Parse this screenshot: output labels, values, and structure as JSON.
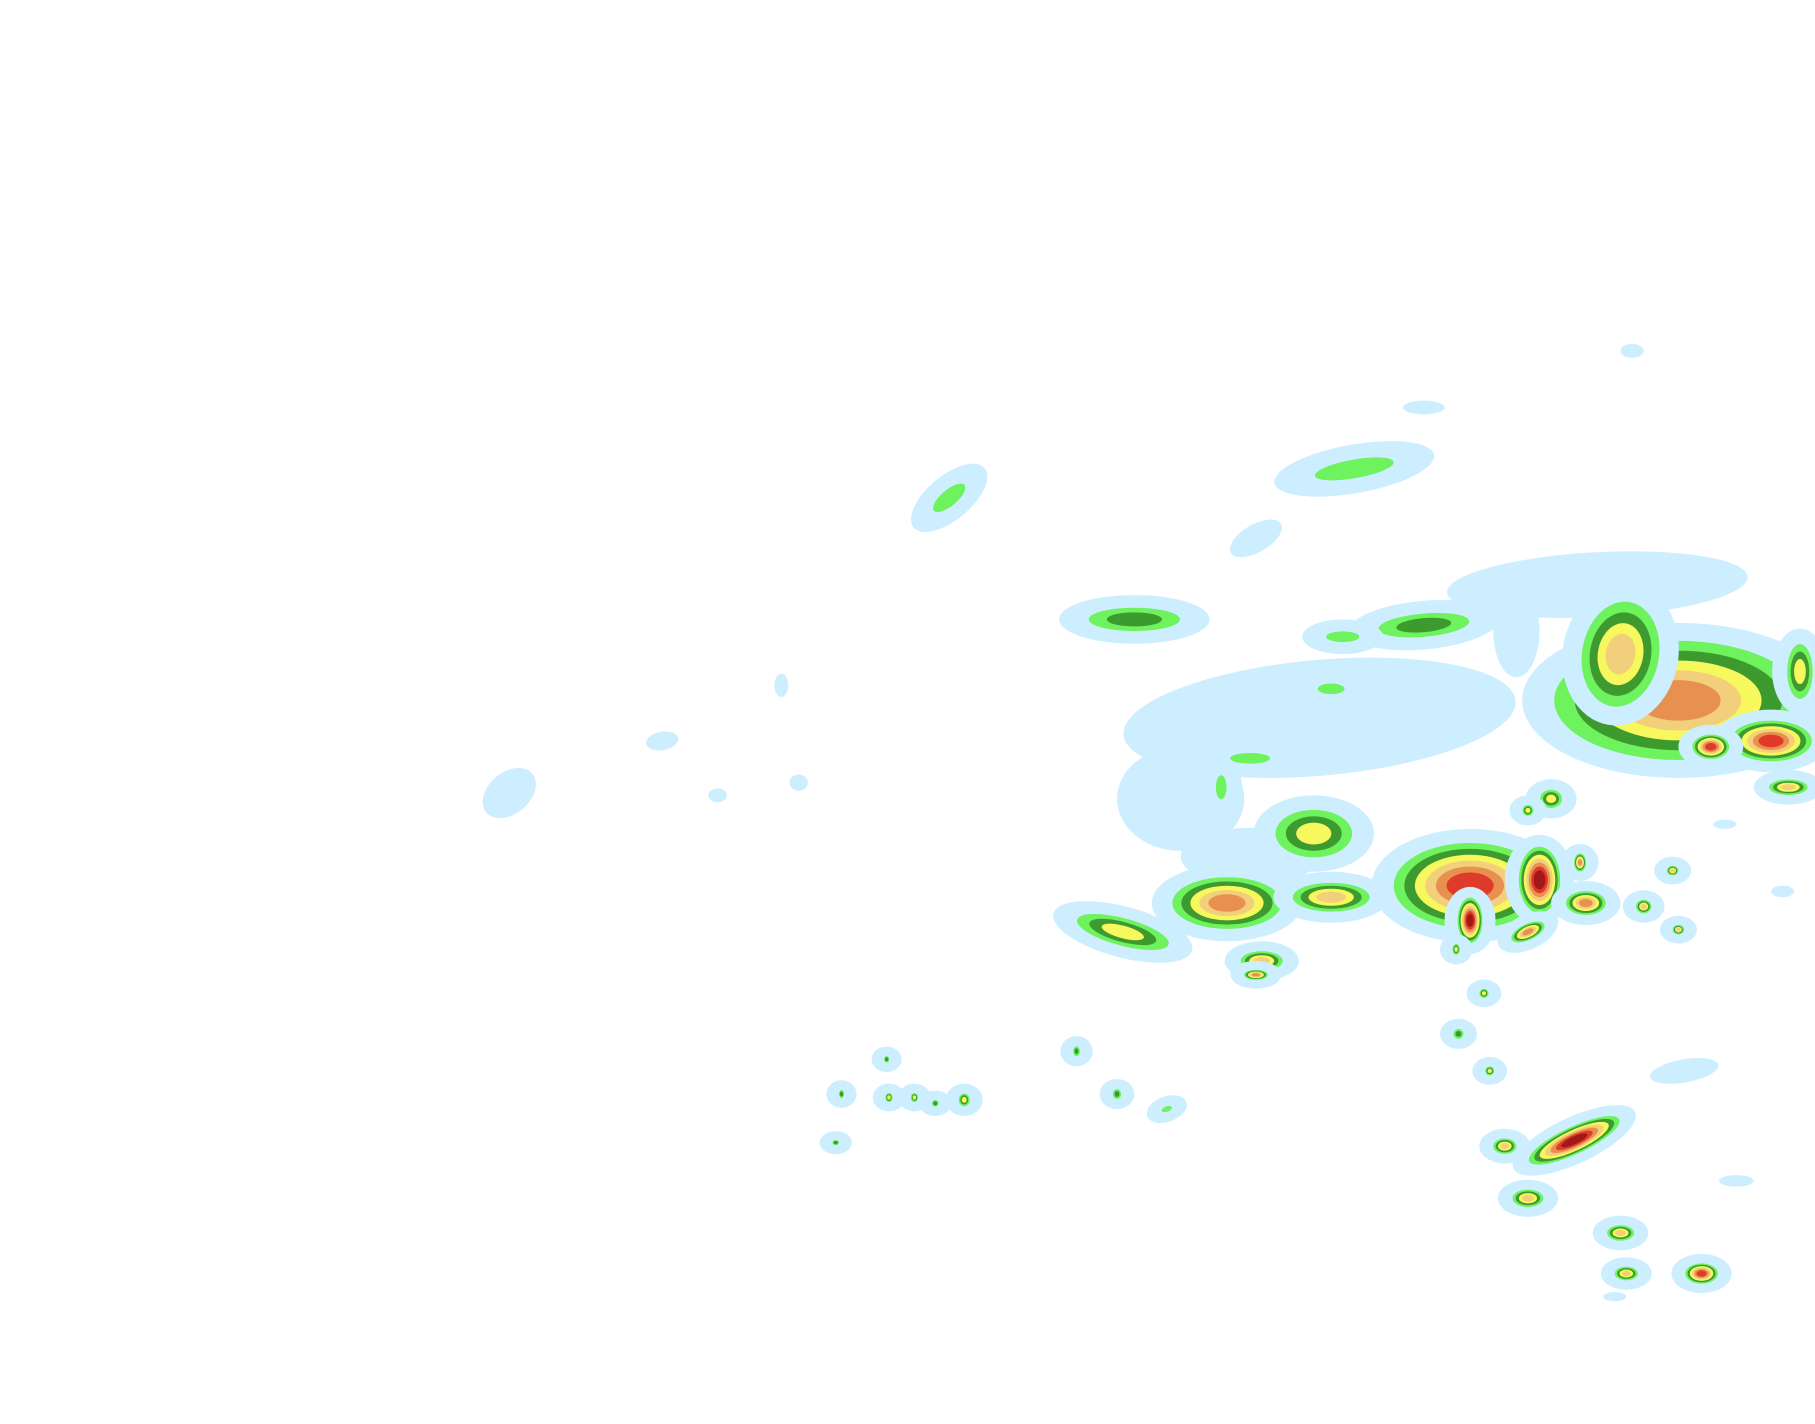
{
  "map": {
    "layer": "precipitation-radar",
    "background_color": "#ffffff",
    "palette": [
      "#cdeeff",
      "#6ef25e",
      "#3d9a2f",
      "#f7f75e",
      "#f2cf7a",
      "#e8904f",
      "#e03a2a",
      "#a01818"
    ],
    "accent_blue": "#5bbcf5"
  }
}
